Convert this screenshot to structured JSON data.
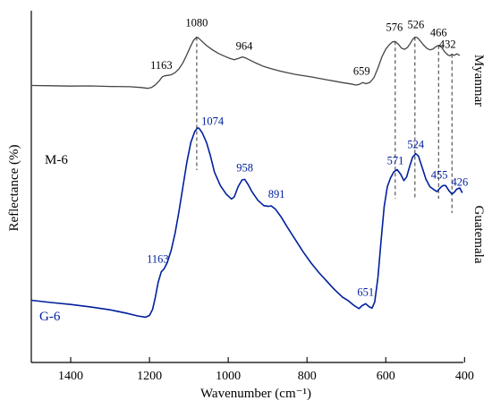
{
  "chart_data": {
    "type": "line",
    "xlabel": "Wavenumber (cm⁻¹)",
    "ylabel": "Reflectance (%)",
    "xlim": [
      1500,
      400
    ],
    "x_reversed": true,
    "x_ticks": [
      1400,
      1200,
      1000,
      800,
      600,
      400
    ],
    "y_ticks_shown": false,
    "grid": false,
    "series": [
      {
        "name": "Myanmar",
        "sample": "M-6",
        "color": "#444444",
        "points": [
          [
            1500,
            0.63
          ],
          [
            1450,
            0.628
          ],
          [
            1400,
            0.626
          ],
          [
            1350,
            0.627
          ],
          [
            1300,
            0.624
          ],
          [
            1250,
            0.622
          ],
          [
            1220,
            0.617
          ],
          [
            1205,
            0.612
          ],
          [
            1195,
            0.617
          ],
          [
            1185,
            0.634
          ],
          [
            1175,
            0.66
          ],
          [
            1168,
            0.683
          ],
          [
            1163,
            0.69
          ],
          [
            1155,
            0.693
          ],
          [
            1145,
            0.697
          ],
          [
            1135,
            0.711
          ],
          [
            1125,
            0.735
          ],
          [
            1115,
            0.773
          ],
          [
            1105,
            0.825
          ],
          [
            1095,
            0.88
          ],
          [
            1088,
            0.915
          ],
          [
            1080,
            0.935
          ],
          [
            1075,
            0.928
          ],
          [
            1065,
            0.905
          ],
          [
            1055,
            0.882
          ],
          [
            1040,
            0.855
          ],
          [
            1025,
            0.832
          ],
          [
            1010,
            0.815
          ],
          [
            995,
            0.8
          ],
          [
            985,
            0.792
          ],
          [
            975,
            0.8
          ],
          [
            964,
            0.81
          ],
          [
            955,
            0.803
          ],
          [
            945,
            0.79
          ],
          [
            930,
            0.772
          ],
          [
            910,
            0.75
          ],
          [
            890,
            0.735
          ],
          [
            870,
            0.722
          ],
          [
            850,
            0.71
          ],
          [
            830,
            0.7
          ],
          [
            810,
            0.692
          ],
          [
            790,
            0.684
          ],
          [
            770,
            0.675
          ],
          [
            750,
            0.666
          ],
          [
            730,
            0.657
          ],
          [
            710,
            0.648
          ],
          [
            690,
            0.64
          ],
          [
            675,
            0.633
          ],
          [
            668,
            0.636
          ],
          [
            659,
            0.648
          ],
          [
            650,
            0.641
          ],
          [
            640,
            0.65
          ],
          [
            630,
            0.68
          ],
          [
            620,
            0.74
          ],
          [
            610,
            0.81
          ],
          [
            600,
            0.86
          ],
          [
            590,
            0.89
          ],
          [
            583,
            0.905
          ],
          [
            576,
            0.908
          ],
          [
            568,
            0.89
          ],
          [
            560,
            0.865
          ],
          [
            552,
            0.858
          ],
          [
            545,
            0.87
          ],
          [
            538,
            0.895
          ],
          [
            532,
            0.92
          ],
          [
            526,
            0.935
          ],
          [
            520,
            0.932
          ],
          [
            512,
            0.91
          ],
          [
            504,
            0.885
          ],
          [
            496,
            0.865
          ],
          [
            488,
            0.855
          ],
          [
            480,
            0.86
          ],
          [
            473,
            0.875
          ],
          [
            466,
            0.883
          ],
          [
            458,
            0.87
          ],
          [
            450,
            0.84
          ],
          [
            442,
            0.822
          ],
          [
            437,
            0.818
          ],
          [
            432,
            0.827
          ],
          [
            426,
            0.82
          ],
          [
            420,
            0.83
          ],
          [
            412,
            0.82
          ]
        ]
      },
      {
        "name": "Guatemala",
        "sample": "G-6",
        "color": "#00209d",
        "points": [
          [
            1500,
            0.177
          ],
          [
            1450,
            0.168
          ],
          [
            1400,
            0.16
          ],
          [
            1350,
            0.15
          ],
          [
            1300,
            0.138
          ],
          [
            1260,
            0.125
          ],
          [
            1230,
            0.113
          ],
          [
            1210,
            0.108
          ],
          [
            1200,
            0.115
          ],
          [
            1192,
            0.14
          ],
          [
            1185,
            0.19
          ],
          [
            1178,
            0.25
          ],
          [
            1170,
            0.293
          ],
          [
            1163,
            0.305
          ],
          [
            1155,
            0.33
          ],
          [
            1145,
            0.38
          ],
          [
            1135,
            0.45
          ],
          [
            1125,
            0.54
          ],
          [
            1115,
            0.64
          ],
          [
            1105,
            0.74
          ],
          [
            1095,
            0.82
          ],
          [
            1085,
            0.865
          ],
          [
            1078,
            0.88
          ],
          [
            1074,
            0.878
          ],
          [
            1066,
            0.86
          ],
          [
            1055,
            0.82
          ],
          [
            1045,
            0.765
          ],
          [
            1035,
            0.7
          ],
          [
            1020,
            0.645
          ],
          [
            1005,
            0.61
          ],
          [
            992,
            0.59
          ],
          [
            985,
            0.598
          ],
          [
            975,
            0.64
          ],
          [
            965,
            0.668
          ],
          [
            958,
            0.67
          ],
          [
            950,
            0.65
          ],
          [
            940,
            0.62
          ],
          [
            925,
            0.585
          ],
          [
            910,
            0.563
          ],
          [
            898,
            0.56
          ],
          [
            891,
            0.562
          ],
          [
            880,
            0.548
          ],
          [
            865,
            0.515
          ],
          [
            850,
            0.475
          ],
          [
            830,
            0.425
          ],
          [
            810,
            0.375
          ],
          [
            790,
            0.33
          ],
          [
            770,
            0.29
          ],
          [
            750,
            0.255
          ],
          [
            730,
            0.22
          ],
          [
            710,
            0.19
          ],
          [
            695,
            0.175
          ],
          [
            680,
            0.155
          ],
          [
            668,
            0.143
          ],
          [
            660,
            0.155
          ],
          [
            651,
            0.163
          ],
          [
            642,
            0.15
          ],
          [
            635,
            0.145
          ],
          [
            628,
            0.17
          ],
          [
            620,
            0.27
          ],
          [
            612,
            0.42
          ],
          [
            604,
            0.56
          ],
          [
            596,
            0.64
          ],
          [
            588,
            0.675
          ],
          [
            580,
            0.7
          ],
          [
            571,
            0.71
          ],
          [
            562,
            0.69
          ],
          [
            554,
            0.665
          ],
          [
            547,
            0.68
          ],
          [
            540,
            0.72
          ],
          [
            532,
            0.76
          ],
          [
            524,
            0.775
          ],
          [
            517,
            0.765
          ],
          [
            508,
            0.72
          ],
          [
            498,
            0.67
          ],
          [
            488,
            0.64
          ],
          [
            478,
            0.628
          ],
          [
            470,
            0.62
          ],
          [
            462,
            0.635
          ],
          [
            455,
            0.645
          ],
          [
            448,
            0.645
          ],
          [
            440,
            0.625
          ],
          [
            432,
            0.61
          ],
          [
            426,
            0.618
          ],
          [
            420,
            0.63
          ],
          [
            412,
            0.635
          ],
          [
            406,
            0.615
          ]
        ]
      }
    ],
    "peak_labels": [
      {
        "series": "Myanmar",
        "text": "1080",
        "x": 1080,
        "y": 0.935,
        "dash": true
      },
      {
        "series": "Myanmar",
        "text": "1163",
        "x": 1163,
        "y": 0.69,
        "dash": false
      },
      {
        "series": "Myanmar",
        "text": "964",
        "x": 964,
        "y": 0.81,
        "dash": false
      },
      {
        "series": "Myanmar",
        "text": "659",
        "x": 659,
        "y": 0.648,
        "dash": false
      },
      {
        "series": "Myanmar",
        "text": "576",
        "x": 576,
        "y": 0.908,
        "dash": true
      },
      {
        "series": "Myanmar",
        "text": "526",
        "x": 526,
        "y": 0.935,
        "dash": true
      },
      {
        "series": "Myanmar",
        "text": "466",
        "x": 466,
        "y": 0.883,
        "dash": true
      },
      {
        "series": "Myanmar",
        "text": "432",
        "x": 432,
        "y": 0.827,
        "dash": true
      },
      {
        "series": "Guatemala",
        "text": "1074",
        "x": 1074,
        "y": 0.878,
        "dash": false
      },
      {
        "series": "Guatemala",
        "text": "1163",
        "x": 1163,
        "y": 0.305,
        "dash": false
      },
      {
        "series": "Guatemala",
        "text": "958",
        "x": 958,
        "y": 0.67,
        "dash": false
      },
      {
        "series": "Guatemala",
        "text": "891",
        "x": 891,
        "y": 0.562,
        "dash": false
      },
      {
        "series": "Guatemala",
        "text": "651",
        "x": 651,
        "y": 0.163,
        "dash": false
      },
      {
        "series": "Guatemala",
        "text": "571",
        "x": 571,
        "y": 0.71,
        "dash": false
      },
      {
        "series": "Guatemala",
        "text": "524",
        "x": 524,
        "y": 0.775,
        "dash": false
      },
      {
        "series": "Guatemala",
        "text": "455",
        "x": 455,
        "y": 0.645,
        "dash": false
      },
      {
        "series": "Guatemala",
        "text": "426",
        "x": 426,
        "y": 0.618,
        "dash": false
      }
    ]
  }
}
